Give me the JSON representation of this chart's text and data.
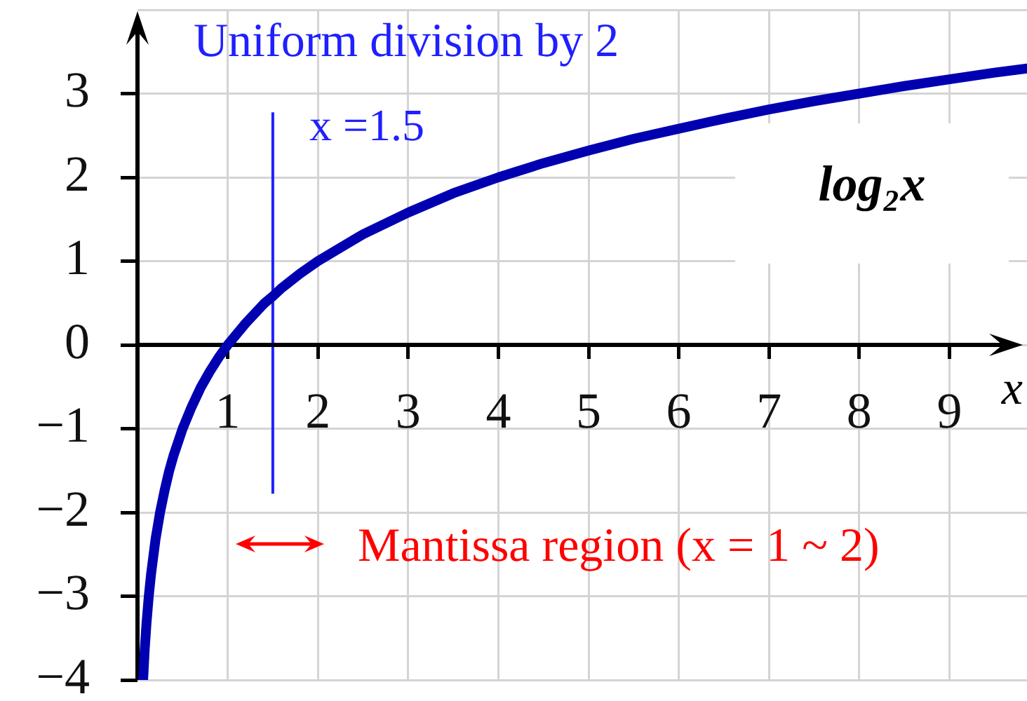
{
  "chart_data": {
    "type": "line",
    "annotations": [
      "Uniform division by 2",
      "Mantissa region (x = 1 ~ 2)"
    ],
    "xlabel": "x",
    "x": [
      0.0625,
      0.08,
      0.1,
      0.125,
      0.15,
      0.2,
      0.25,
      0.3,
      0.35,
      0.4,
      0.5,
      0.6,
      0.7,
      0.8,
      0.9,
      1,
      1.2,
      1.4,
      1.5,
      1.6,
      1.8,
      2,
      2.5,
      3,
      3.5,
      4,
      4.5,
      5,
      5.5,
      6,
      6.5,
      7,
      7.5,
      8,
      8.5,
      9,
      9.5,
      9.86
    ],
    "series": [
      {
        "name": "log₂x",
        "color": "#0000b0",
        "values": [
          -4,
          -3.64,
          -3.32,
          -3,
          -2.74,
          -2.32,
          -2,
          -1.74,
          -1.51,
          -1.32,
          -1,
          -0.74,
          -0.51,
          -0.32,
          -0.15,
          0,
          0.26,
          0.49,
          0.58,
          0.68,
          0.85,
          1,
          1.32,
          1.58,
          1.81,
          2,
          2.17,
          2.32,
          2.46,
          2.58,
          2.7,
          2.81,
          2.91,
          3,
          3.09,
          3.17,
          3.25,
          3.3
        ]
      }
    ],
    "xlim": [
      0,
      9.86
    ],
    "ylim": [
      -4,
      4
    ],
    "xticks": [
      1,
      2,
      3,
      4,
      5,
      6,
      7,
      8,
      9
    ],
    "yticks": [
      {
        "value": -4,
        "label": "−4"
      },
      {
        "value": -3,
        "label": "−3"
      },
      {
        "value": -2,
        "label": "−2"
      },
      {
        "value": -1,
        "label": "−1"
      },
      0,
      1,
      2,
      3,
      {
        "value": 4,
        "label": null
      }
    ],
    "grid": true,
    "marker": "none",
    "line_style": "solid",
    "ref_lines": [
      {
        "axis": "x",
        "value": 1.5,
        "label": "x =1.5",
        "color": "#1f1fff"
      }
    ]
  }
}
